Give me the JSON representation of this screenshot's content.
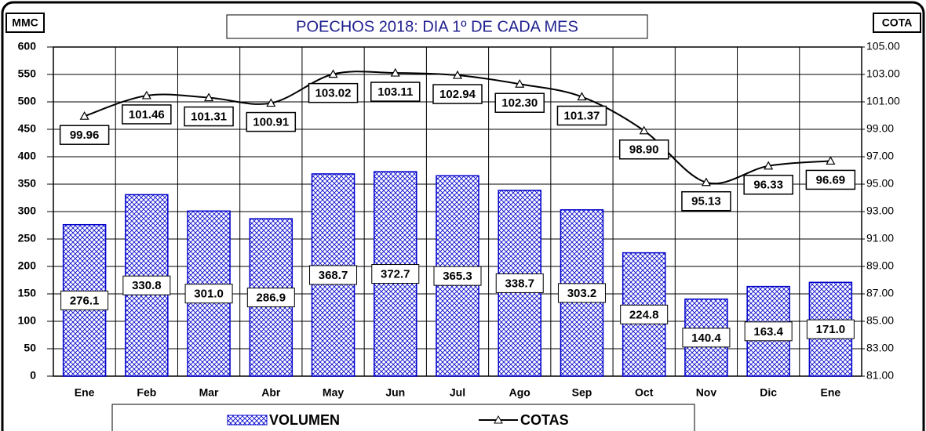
{
  "chart_data": {
    "type": "bar_line",
    "title": "POECHOS 2018: DIA 1º DE CADA MES",
    "y_label": "MMC",
    "y2_label": "COTA",
    "categories": [
      "Ene",
      "Feb",
      "Mar",
      "Abr",
      "May",
      "Jun",
      "Jul",
      "Ago",
      "Sep",
      "Oct",
      "Nov",
      "Dic",
      "Ene"
    ],
    "series": [
      {
        "name": "VOLUMEN",
        "type": "bar",
        "color": "#0000cc",
        "values": [
          276.1,
          330.8,
          301.0,
          286.9,
          368.7,
          372.7,
          365.3,
          338.7,
          303.2,
          224.8,
          140.4,
          163.4,
          171.0
        ],
        "value_labels": [
          "276.1",
          "330.8",
          "301.0",
          "286.9",
          "368.7",
          "372.7",
          "365.3",
          "338.7",
          "303.2",
          "224.8",
          "140.4",
          "163.4",
          "171.0"
        ]
      },
      {
        "name": "COTAS",
        "type": "line",
        "axis": "y2",
        "color": "#000000",
        "values": [
          99.96,
          101.46,
          101.31,
          100.91,
          103.02,
          103.11,
          102.94,
          102.3,
          101.37,
          98.9,
          95.13,
          96.33,
          96.69
        ],
        "value_labels": [
          "99.96",
          "101.46",
          "101.31",
          "100.91",
          "103.02",
          "103.11",
          "102.94",
          "102.30",
          "101.37",
          "98.90",
          "95.13",
          "96.33",
          "96.69"
        ]
      }
    ],
    "ylim": [
      0,
      600
    ],
    "yticks": [
      0,
      50,
      100,
      150,
      200,
      250,
      300,
      350,
      400,
      450,
      500,
      550,
      600
    ],
    "y2lim": [
      81,
      105
    ],
    "y2ticks": [
      {
        "value": 81,
        "label": "81.00"
      },
      {
        "value": 83,
        "label": "83.00"
      },
      {
        "value": 85,
        "label": "85.00"
      },
      {
        "value": 87,
        "label": "87.00"
      },
      {
        "value": 89,
        "label": "89.00"
      },
      {
        "value": 91,
        "label": "91.00"
      },
      {
        "value": 93,
        "label": "93.00"
      },
      {
        "value": 95,
        "label": "95.00"
      },
      {
        "value": 97,
        "label": "97.00"
      },
      {
        "value": 99,
        "label": "99.00"
      },
      {
        "value": 101,
        "label": "101.00"
      },
      {
        "value": 103,
        "label": "103.00"
      },
      {
        "value": 105,
        "label": "105.00"
      }
    ],
    "grid": true
  }
}
